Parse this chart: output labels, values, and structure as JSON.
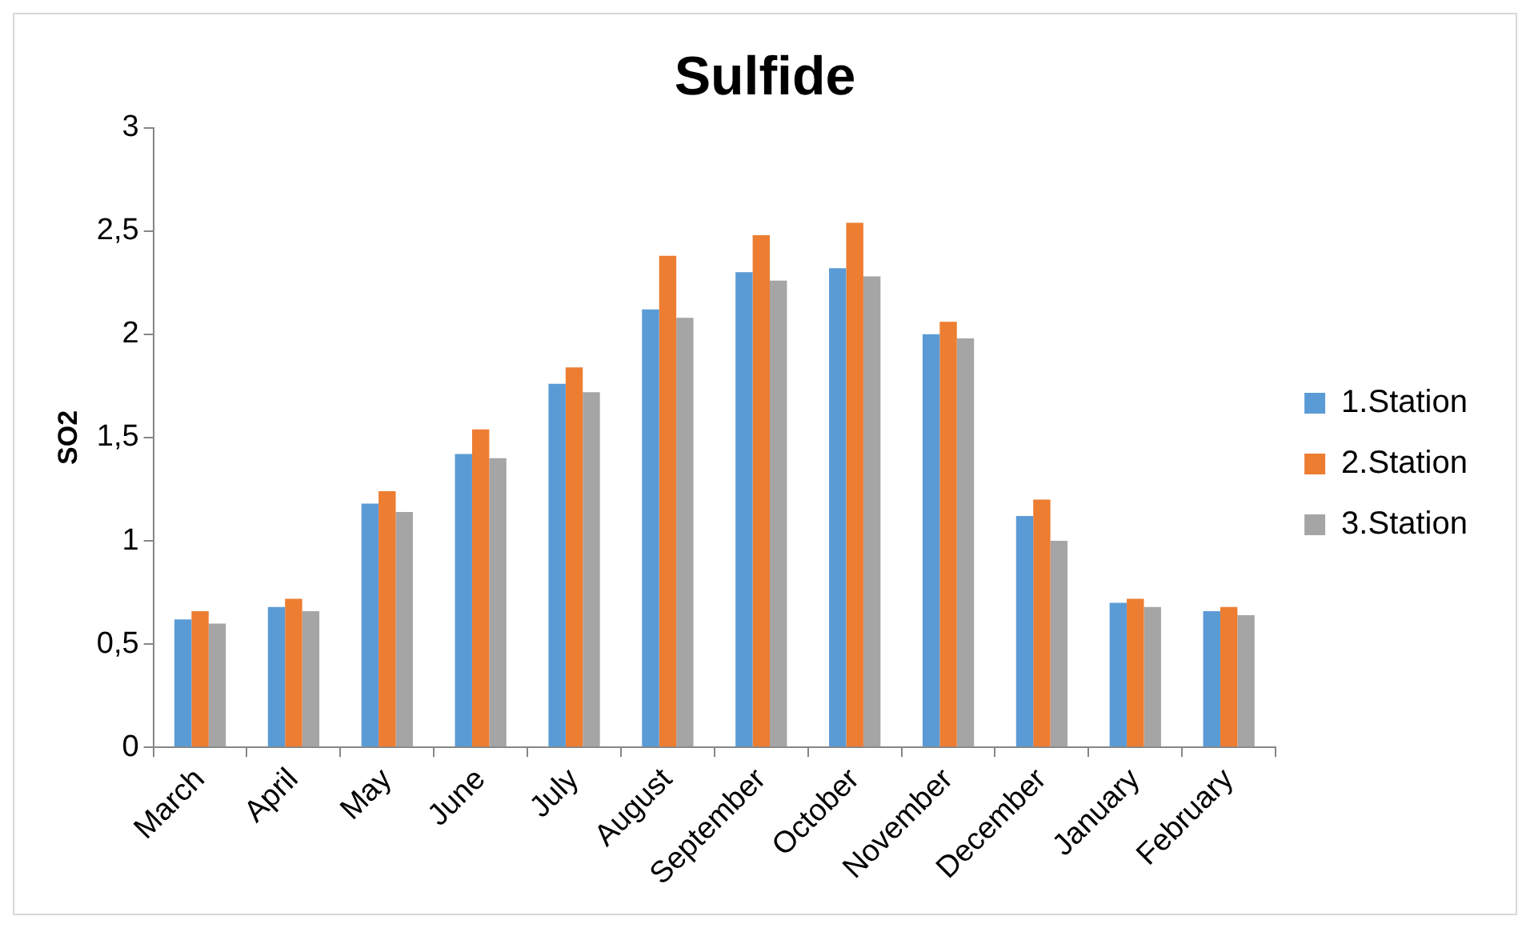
{
  "chart_data": {
    "type": "bar",
    "title": "Sulfide",
    "ylabel": "SO2",
    "categories": [
      "March",
      "April",
      "May",
      "June",
      "July",
      "August",
      "September",
      "October",
      "November",
      "December",
      "January",
      "February"
    ],
    "series": [
      {
        "name": "1.Station",
        "color": "#5b9bd5",
        "values": [
          0.62,
          0.68,
          1.18,
          1.42,
          1.76,
          2.12,
          2.3,
          2.32,
          2.0,
          1.12,
          0.7,
          0.66
        ]
      },
      {
        "name": "2.Station",
        "color": "#ed7d31",
        "values": [
          0.66,
          0.72,
          1.24,
          1.54,
          1.84,
          2.38,
          2.48,
          2.54,
          2.06,
          1.2,
          0.72,
          0.68
        ]
      },
      {
        "name": "3.Station",
        "color": "#a5a5a5",
        "values": [
          0.6,
          0.66,
          1.14,
          1.4,
          1.72,
          2.08,
          2.26,
          2.28,
          1.98,
          1.0,
          0.68,
          0.64
        ]
      }
    ],
    "ylim": [
      0,
      3
    ],
    "yticks": [
      0,
      {
        "value": 0.5,
        "label": "0,5"
      },
      1,
      {
        "value": 1.5,
        "label": "1,5"
      },
      2,
      {
        "value": 2.5,
        "label": "2,5"
      },
      3
    ],
    "grid": false,
    "legend": "right"
  }
}
